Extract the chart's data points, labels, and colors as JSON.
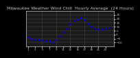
{
  "title": "Milwaukee Weather Wind Chill  Hourly Average  (24 Hours)",
  "title_line1": "Milwaukee Weather Wind Chill",
  "title_line2": "Hourly Average",
  "title_line3": "(24 Hours)",
  "hours": [
    1,
    2,
    3,
    4,
    5,
    6,
    7,
    8,
    9,
    10,
    11,
    12,
    13,
    14,
    15,
    16,
    17,
    18,
    19,
    20,
    21,
    22,
    23,
    24
  ],
  "values": [
    -4,
    -5,
    -6,
    -6.5,
    -7,
    -7.5,
    -8,
    -10,
    -6,
    -2,
    3,
    8,
    14,
    18,
    20,
    21,
    19,
    14,
    10,
    8,
    7,
    7,
    8,
    9
  ],
  "line_color": "#0000ff",
  "dot_color": "#0000ee",
  "bg_color": "#000000",
  "plot_bg_color": "#1a1a1a",
  "grid_color": "#555555",
  "text_color": "#cccccc",
  "title_fontsize": 4.5,
  "ylim": [
    -15,
    30
  ],
  "yticks": [
    -10,
    -5,
    0,
    5,
    10,
    15,
    20,
    25
  ],
  "xtick_hours": [
    1,
    3,
    5,
    7,
    9,
    11,
    13,
    15,
    17,
    19,
    21,
    23
  ],
  "vgrid_hours": [
    5,
    9,
    13,
    17,
    21
  ],
  "marker_size": 1.8,
  "xlim": [
    0.5,
    25.5
  ]
}
